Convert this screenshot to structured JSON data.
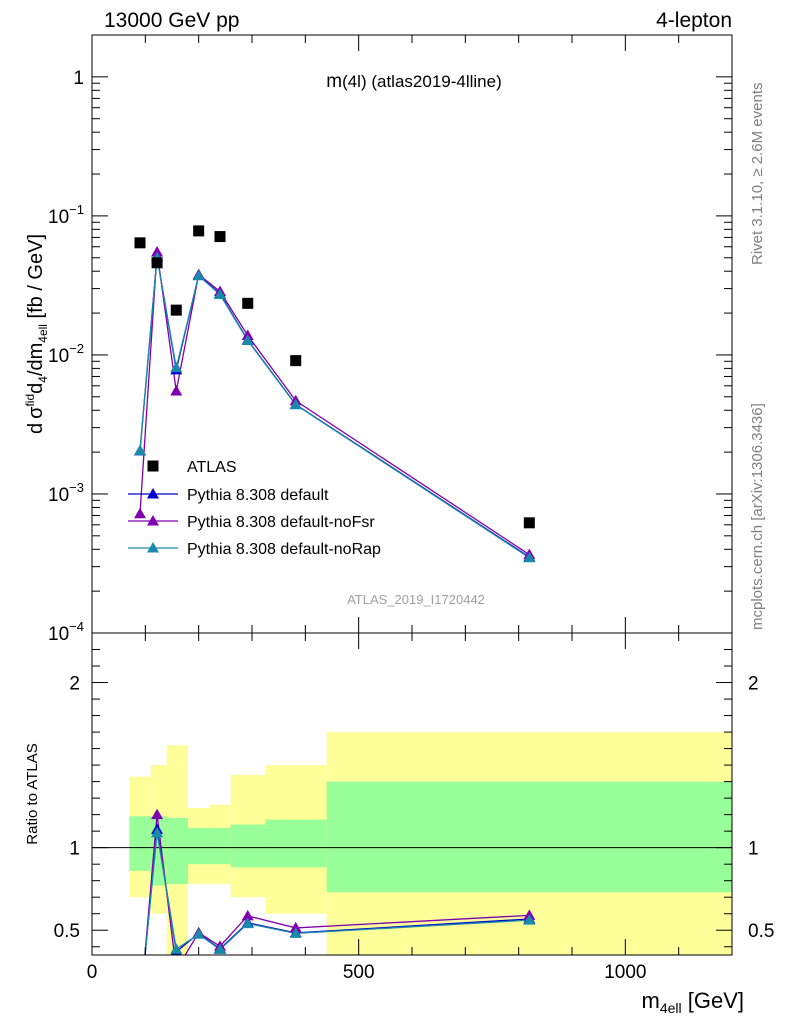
{
  "header": {
    "left": "13000 GeV pp",
    "right": "4-lepton"
  },
  "side_labels": {
    "rivet": "Rivet 3.1.10, ≥ 2.6M events",
    "mcplots": "mcplots.cern.ch [arXiv:1306.3436]"
  },
  "chart_data": [
    {
      "type": "scatter",
      "panel": "main",
      "title": "m(4l) (atlas2019-4lline)",
      "title_parts": {
        "m": "m",
        "paren": "(4l)",
        "rest": " (atlas2019-4lline)"
      },
      "watermark": "ATLAS_2019_I1720442",
      "ylabel_parts": {
        "d": "d",
        "sigma": "σ",
        "fid": "fid",
        "d4": "d",
        "4": "4",
        "sdm": "/dm",
        "4ell": "4ell",
        "unit": " [fb / GeV]"
      },
      "yscale": "log",
      "ylim": [
        0.0001,
        2
      ],
      "xlim": [
        0,
        1200
      ],
      "y_tick_labels": [
        {
          "base": "10",
          "exp": "−4",
          "value": 0.0001
        },
        {
          "base": "10",
          "exp": "−3",
          "value": 0.001
        },
        {
          "base": "10",
          "exp": "−2",
          "value": 0.01
        },
        {
          "base": "10",
          "exp": "−1",
          "value": 0.1
        },
        {
          "base": "1",
          "exp": "",
          "value": 1
        }
      ],
      "legend": {
        "position": "lower-left",
        "entries": [
          "ATLAS",
          "Pythia 8.308 default",
          "Pythia 8.308 default-noFsr",
          "Pythia 8.308 default-noRap"
        ]
      },
      "data_points": {
        "name": "ATLAS",
        "color": "#000000",
        "x": [
          90,
          122,
          158,
          200,
          240,
          292,
          382,
          820
        ],
        "y": [
          0.064,
          0.046,
          0.021,
          0.078,
          0.071,
          0.0235,
          0.0091,
          0.00062
        ]
      },
      "series": [
        {
          "name": "Pythia 8.308 default",
          "color": "#0000cc",
          "x": [
            90,
            122,
            158,
            200,
            240,
            292,
            382,
            820
          ],
          "y": [
            0.00204,
            0.051,
            0.0078,
            0.0374,
            0.0275,
            0.0128,
            0.0044,
            0.000352
          ]
        },
        {
          "name": "Pythia 8.308 default-noFsr",
          "color": "#8000b0",
          "x": [
            90,
            122,
            158,
            200,
            240,
            292,
            382,
            820
          ],
          "y": [
            0.00072,
            0.055,
            0.0055,
            0.0378,
            0.0286,
            0.0138,
            0.00468,
            0.000366
          ]
        },
        {
          "name": "Pythia 8.308 default-noRap",
          "color": "#1a8aaa",
          "x": [
            90,
            122,
            158,
            200,
            240,
            292,
            382,
            820
          ],
          "y": [
            0.00205,
            0.05,
            0.0081,
            0.0371,
            0.0272,
            0.0127,
            0.00438,
            0.000348
          ]
        }
      ]
    },
    {
      "type": "line",
      "panel": "ratio",
      "ylabel": "Ratio to ATLAS",
      "xlabel_parts": {
        "m": "m",
        "sub": "4ell",
        "unit": " [GeV]"
      },
      "xlim": [
        0,
        1200
      ],
      "ylim": [
        0.35,
        2.3
      ],
      "y_ticks": [
        0.5,
        1,
        2
      ],
      "y_tick_labels": [
        "0.5",
        "1",
        "2"
      ],
      "x_ticks": [
        0,
        500,
        1000
      ],
      "x_tick_labels": [
        "0",
        "500",
        "1000"
      ],
      "bands": {
        "inner_color": "#99ff99",
        "outer_color": "#ffff99",
        "bins": [
          {
            "x": [
              70,
              110
            ],
            "inner": [
              0.86,
              1.19
            ],
            "outer": [
              0.7,
              1.43
            ]
          },
          {
            "x": [
              110,
              140
            ],
            "inner": [
              0.77,
              1.19
            ],
            "outer": [
              0.6,
              1.5
            ]
          },
          {
            "x": [
              140,
              180
            ],
            "inner": [
              0.78,
              1.18
            ],
            "outer": [
              0.35,
              1.62
            ]
          },
          {
            "x": [
              180,
              220
            ],
            "inner": [
              0.9,
              1.12
            ],
            "outer": [
              0.78,
              1.24
            ]
          },
          {
            "x": [
              220,
              260
            ],
            "inner": [
              0.9,
              1.12
            ],
            "outer": [
              0.78,
              1.26
            ]
          },
          {
            "x": [
              260,
              325
            ],
            "inner": [
              0.88,
              1.14
            ],
            "outer": [
              0.7,
              1.44
            ]
          },
          {
            "x": [
              325,
              440
            ],
            "inner": [
              0.88,
              1.17
            ],
            "outer": [
              0.6,
              1.5
            ]
          },
          {
            "x": [
              440,
              1200
            ],
            "inner": [
              0.73,
              1.4
            ],
            "outer": [
              0.35,
              1.7
            ]
          }
        ]
      },
      "series": [
        {
          "name": "Pythia 8.308 default",
          "color": "#0000cc",
          "x": [
            90,
            122,
            158,
            200,
            240,
            292,
            382,
            820
          ],
          "y": [
            0.032,
            1.11,
            0.37,
            0.48,
            0.387,
            0.545,
            0.484,
            0.568
          ]
        },
        {
          "name": "Pythia 8.308 default-noFsr",
          "color": "#8000b0",
          "x": [
            90,
            122,
            158,
            200,
            240,
            292,
            382,
            820
          ],
          "y": [
            0.011,
            1.2,
            0.26,
            0.485,
            0.403,
            0.587,
            0.514,
            0.59
          ]
        },
        {
          "name": "Pythia 8.308 default-noRap",
          "color": "#1a8aaa",
          "x": [
            90,
            122,
            158,
            200,
            240,
            292,
            382,
            820
          ],
          "y": [
            0.032,
            1.09,
            0.385,
            0.476,
            0.383,
            0.54,
            0.481,
            0.561
          ]
        }
      ]
    }
  ]
}
